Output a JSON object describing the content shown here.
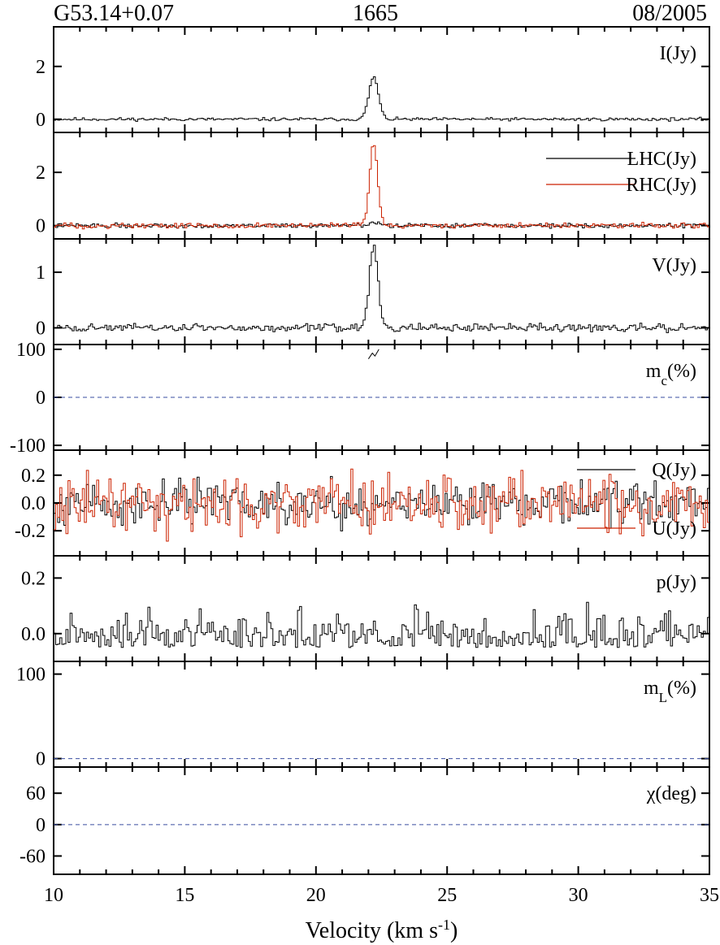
{
  "header": {
    "source": "G53.14+0.07",
    "frequency": "1665",
    "date": "08/2005"
  },
  "chart_data": {
    "type": "line",
    "xlabel": "Velocity (km s^-1)",
    "xlim": [
      10,
      35
    ],
    "xticks": [
      10,
      15,
      20,
      25,
      30,
      35
    ],
    "line_peak_velocity": 22.2,
    "panels": [
      {
        "id": "I",
        "label": "I(Jy)",
        "label_base": "I(Jy)",
        "label_sub": "",
        "ylim": [
          -0.5,
          3.5
        ],
        "yticks": [
          0,
          2
        ],
        "series": [
          {
            "name": "I(Jy)",
            "color": "#000000",
            "noise": 0.03,
            "peak": 1.6,
            "width": 0.18,
            "seed": 11
          }
        ]
      },
      {
        "id": "LR",
        "label": "",
        "label_base": "",
        "label_sub": "",
        "ylim": [
          -0.5,
          3.5
        ],
        "yticks": [
          0,
          2
        ],
        "legend": [
          "LHC(Jy)",
          "RHC(Jy)"
        ],
        "series": [
          {
            "name": "LHC(Jy)",
            "color": "#000000",
            "noise": 0.04,
            "peak": 0.1,
            "width": 0.2,
            "seed": 22
          },
          {
            "name": "RHC(Jy)",
            "color": "#cc2200",
            "noise": 0.05,
            "peak": 3.1,
            "width": 0.15,
            "seed": 33
          }
        ]
      },
      {
        "id": "V",
        "label": "V(Jy)",
        "label_base": "V(Jy)",
        "label_sub": "",
        "ylim": [
          -0.3,
          1.6
        ],
        "yticks": [
          0,
          1
        ],
        "series": [
          {
            "name": "V(Jy)",
            "color": "#000000",
            "noise": 0.035,
            "peak": 1.5,
            "width": 0.16,
            "seed": 44
          }
        ]
      },
      {
        "id": "mc",
        "label": "mc(%)",
        "label_base": "m",
        "label_sub": "c",
        "label_suffix": "(%)",
        "ylim": [
          -110,
          110
        ],
        "yticks": [
          -100,
          0,
          100
        ],
        "ytick_labels": [
          "-100",
          "0",
          "100"
        ],
        "zero_line": true,
        "series": [
          {
            "name": "mc",
            "color": "#000000",
            "points": [
              [
                22.0,
                80
              ],
              [
                22.15,
                92
              ],
              [
                22.25,
                86
              ],
              [
                22.4,
                100
              ]
            ]
          }
        ]
      },
      {
        "id": "QU",
        "label": "",
        "label_base": "",
        "label_sub": "",
        "ylim": [
          -0.38,
          0.38
        ],
        "yticks": [
          -0.2,
          0.0,
          0.2
        ],
        "ytick_labels": [
          "-0.2",
          "0.0",
          "0.2"
        ],
        "legend": [
          "Q(Jy)",
          "U(Jy)"
        ],
        "series": [
          {
            "name": "Q(Jy)",
            "color": "#000000",
            "noise": 0.075,
            "peak": 0,
            "width": 0.2,
            "seed": 55
          },
          {
            "name": "U(Jy)",
            "color": "#cc2200",
            "noise": 0.1,
            "peak": 0,
            "width": 0.2,
            "seed": 66
          }
        ]
      },
      {
        "id": "p",
        "label": "p(Jy)",
        "label_base": "p(Jy)",
        "label_sub": "",
        "ylim": [
          -0.1,
          0.28
        ],
        "yticks": [
          0.0,
          0.2
        ],
        "ytick_labels": [
          "0.0",
          "0.2"
        ],
        "series": [
          {
            "name": "p(Jy)",
            "color": "#000000",
            "noise": 0.06,
            "peak": 0,
            "width": 0.2,
            "seed": 77,
            "abs": true,
            "offset": -0.05
          }
        ]
      },
      {
        "id": "mL",
        "label": "mL(%)",
        "label_base": "m",
        "label_sub": "L",
        "label_suffix": "(%)",
        "ylim": [
          -10,
          115
        ],
        "yticks": [
          0,
          100
        ],
        "ytick_labels": [
          "0",
          "100"
        ],
        "zero_line": true,
        "series": []
      },
      {
        "id": "chi",
        "label": "χ(deg)",
        "label_base": "χ(deg)",
        "label_sub": "",
        "ylim": [
          -95,
          110
        ],
        "yticks": [
          -60,
          0,
          60
        ],
        "ytick_labels": [
          "-60",
          "0",
          "60"
        ],
        "zero_line": true,
        "series": []
      }
    ]
  }
}
